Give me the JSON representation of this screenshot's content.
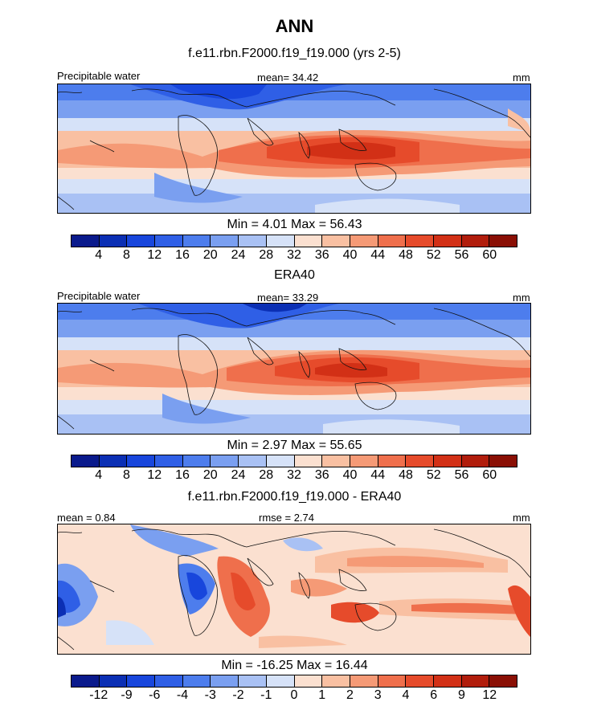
{
  "header": {
    "title": "ANN"
  },
  "chart_data": [
    {
      "type": "heatmap",
      "title": "f.e11.rbn.F2000.f19_f19.000 (yrs 2-5)",
      "left_label": "Precipitable water",
      "center_label": "mean=  34.42",
      "right_label": "mm",
      "min_max": "Min =   4.01 Max =  56.43",
      "colorbar_ticks": [
        "4",
        "8",
        "12",
        "16",
        "20",
        "24",
        "28",
        "32",
        "36",
        "40",
        "44",
        "48",
        "52",
        "56",
        "60"
      ],
      "stats": {
        "mean": 34.42,
        "min": 4.01,
        "max": 56.43
      }
    },
    {
      "type": "heatmap",
      "title": "ERA40",
      "left_label": "Precipitable water",
      "center_label": "mean=  33.29",
      "right_label": "mm",
      "min_max": "Min =   2.97 Max =  55.65",
      "colorbar_ticks": [
        "4",
        "8",
        "12",
        "16",
        "20",
        "24",
        "28",
        "32",
        "36",
        "40",
        "44",
        "48",
        "52",
        "56",
        "60"
      ],
      "stats": {
        "mean": 33.29,
        "min": 2.97,
        "max": 55.65
      }
    },
    {
      "type": "heatmap",
      "title": "f.e11.rbn.F2000.f19_f19.000 - ERA40",
      "left_label": "mean =   0.84",
      "center_label": "rmse =   2.74",
      "right_label": "mm",
      "min_max": "Min = -16.25 Max =  16.44",
      "colorbar_ticks": [
        "-12",
        "-9",
        "-6",
        "-4",
        "-3",
        "-2",
        "-1",
        "0",
        "1",
        "2",
        "3",
        "4",
        "6",
        "9",
        "12"
      ],
      "stats": {
        "mean": 0.84,
        "rmse": 2.74,
        "min": -16.25,
        "max": 16.44
      }
    }
  ],
  "palette": [
    "#0a1a8c",
    "#0b2fb4",
    "#1846dc",
    "#2f5fe6",
    "#4d7ded",
    "#7a9ff0",
    "#a9c1f4",
    "#d6e2f8",
    "#fbe0d0",
    "#f9c0a2",
    "#f59a76",
    "#ef6f4c",
    "#e64b2b",
    "#d23016",
    "#b11d0c",
    "#8a0f05"
  ]
}
